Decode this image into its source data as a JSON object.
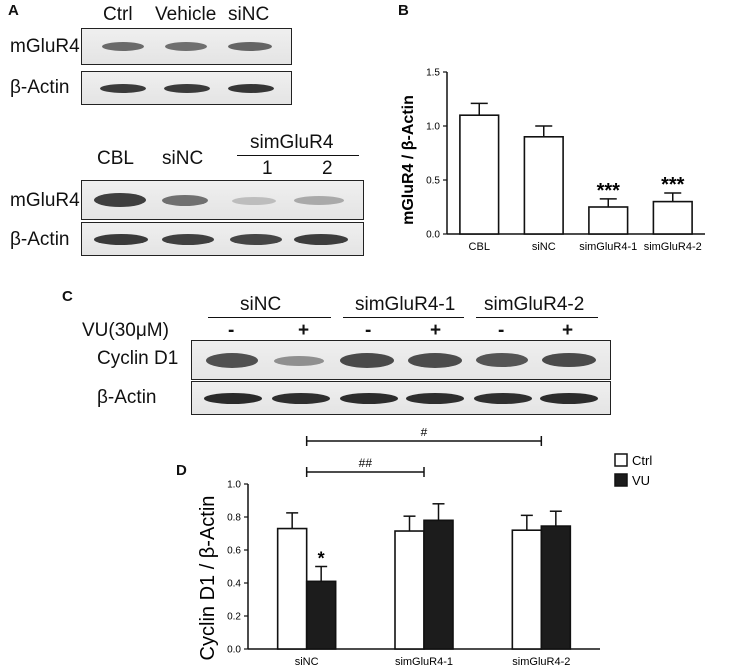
{
  "panels": {
    "a": "A",
    "b": "B",
    "c": "C",
    "d": "D"
  },
  "blot_a_top": {
    "lanes": [
      "Ctrl",
      "Vehicle",
      "siNC"
    ],
    "rows": [
      "mGluR4",
      "β-Actin"
    ]
  },
  "blot_a_bottom": {
    "lanes": [
      "CBL",
      "siNC"
    ],
    "group": "simGluR4",
    "sublanes": [
      "1",
      "2"
    ],
    "rows": [
      "mGluR4",
      "β-Actin"
    ]
  },
  "blot_c": {
    "treatment_label": "VU(30μM)",
    "groups": [
      "siNC",
      "simGluR4-1",
      "simGluR4-2"
    ],
    "signs": [
      "-",
      "+",
      "-",
      "+",
      "-",
      "+"
    ],
    "rows": [
      "Cyclin D1",
      "β-Actin"
    ]
  },
  "chart_data": [
    {
      "type": "bar",
      "panel": "B",
      "categories": [
        "CBL",
        "siNC",
        "simGluR4-1",
        "simGluR4-2"
      ],
      "values": [
        1.1,
        0.9,
        0.25,
        0.3
      ],
      "errors": [
        0.11,
        0.1,
        0.075,
        0.08
      ],
      "annotations": [
        "",
        "",
        "***",
        "***"
      ],
      "ylabel": "mGluR4 / β-Actin",
      "ylim": [
        0,
        1.5
      ],
      "yticks": [
        "0.0",
        "0.5",
        "1.0",
        "1.5"
      ],
      "bar_color": "#ffffff"
    },
    {
      "type": "bar",
      "panel": "D",
      "categories": [
        "siNC",
        "simGluR4-1",
        "simGluR4-2"
      ],
      "series": [
        {
          "name": "Ctrl",
          "values": [
            0.73,
            0.715,
            0.72
          ],
          "errors": [
            0.095,
            0.09,
            0.09
          ],
          "color": "#ffffff"
        },
        {
          "name": "VU",
          "values": [
            0.41,
            0.78,
            0.745
          ],
          "errors": [
            0.09,
            0.1,
            0.09
          ],
          "color": "#1c1c1c"
        }
      ],
      "annotations": [
        {
          "text": "*",
          "category": "siNC",
          "series": "VU"
        }
      ],
      "brackets": [
        {
          "text": "##",
          "from": "siNC",
          "to": "simGluR4-1"
        },
        {
          "text": "#",
          "from": "siNC",
          "to": "simGluR4-2"
        }
      ],
      "ylabel": "Cyclin D1 / β-Actin",
      "ylim": [
        0,
        1.0
      ],
      "yticks": [
        "0.0",
        "0.2",
        "0.4",
        "0.6",
        "0.8",
        "1.0"
      ],
      "legend": "top-right"
    }
  ]
}
